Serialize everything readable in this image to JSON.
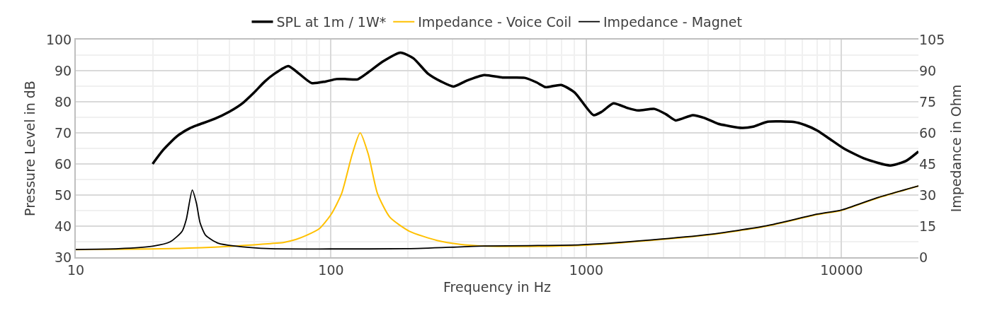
{
  "chart_data": {
    "type": "line",
    "xlabel": "Frequency in Hz",
    "ylabel": "Pressure Level in dB",
    "y2label": "Impedance in Ohm",
    "log": "x",
    "grid": true,
    "legend": "top",
    "line_style": "solid",
    "marker": "none",
    "xlim": [
      10,
      20000
    ],
    "xticks": [
      10,
      100,
      1000,
      10000
    ],
    "ylim": [
      30,
      100
    ],
    "yticks": [
      30,
      40,
      50,
      60,
      70,
      80,
      90,
      100
    ],
    "y2lim": [
      0,
      105
    ],
    "y2ticks": [
      0,
      15,
      30,
      45,
      60,
      75,
      90,
      105
    ],
    "series": [
      {
        "name": "SPL at 1m / 1W*",
        "color": "#000000",
        "x": [
          20,
          22,
          25,
          28,
          30,
          35,
          40,
          45,
          50,
          55,
          60,
          68,
          75,
          84,
          95,
          105,
          115,
          127,
          140,
          160,
          187,
          210,
          240,
          270,
          302,
          340,
          398,
          470,
          573,
          640,
          692,
          797,
          900,
          1067,
          1150,
          1276,
          1450,
          1596,
          1849,
          2050,
          2240,
          2612,
          2900,
          3290,
          4075,
          4500,
          5130,
          6480,
          7200,
          8050,
          9000,
          10190,
          12400,
          15500,
          17900,
          20000
        ],
        "values": [
          60,
          64.5,
          69,
          71.5,
          72.5,
          74.5,
          76.8,
          79.5,
          83,
          86.5,
          89,
          91.5,
          89,
          86,
          86.5,
          87.3,
          87.3,
          87.2,
          89.5,
          93,
          95.8,
          94,
          89,
          86.5,
          84.9,
          86.8,
          88.6,
          87.8,
          87.7,
          86.2,
          84.7,
          85.4,
          83,
          75.7,
          76.8,
          79.5,
          78,
          77.2,
          77.7,
          76,
          74,
          75.7,
          74.8,
          72.9,
          71.6,
          72,
          73.6,
          73.5,
          72.5,
          70.7,
          68,
          65,
          61.6,
          59.5,
          61,
          64
        ]
      },
      {
        "name": "Impedance - Voice Coil",
        "color": "#ffc000",
        "axis": "y2",
        "x": [
          10,
          20,
          28,
          35,
          42,
          50,
          58,
          65,
          73,
          80,
          90,
          100,
          110,
          121,
          130,
          140,
          152,
          170,
          203,
          260,
          320,
          398,
          600,
          951,
          1780,
          3040,
          5050,
          8050,
          10000,
          13700,
          20000
        ],
        "values": [
          3.7,
          4,
          4.4,
          4.9,
          5.4,
          6,
          6.6,
          7.1,
          8.6,
          10.5,
          13.8,
          20.6,
          30.7,
          49.6,
          60,
          49.6,
          30.7,
          19.3,
          12.5,
          8.1,
          6.2,
          5.4,
          5.2,
          5.7,
          8.1,
          10.8,
          14.9,
          20.6,
          22.6,
          28.4,
          34.4
        ]
      },
      {
        "name": "Impedance - Magnet",
        "color": "#000000",
        "axis": "y2",
        "x": [
          10,
          14.7,
          20.2,
          23.4,
          26.1,
          27.1,
          28.6,
          29.7,
          30.7,
          32.3,
          36.1,
          42,
          58,
          100,
          200,
          322,
          398,
          600,
          951,
          1780,
          3040,
          5050,
          8050,
          10000,
          13700,
          20000
        ],
        "values": [
          3.7,
          4.1,
          5.4,
          7.4,
          12.5,
          18.2,
          32.4,
          26,
          16.5,
          10.5,
          6.8,
          5.4,
          4.1,
          4,
          4.1,
          5,
          5.4,
          5.6,
          6,
          8.3,
          11,
          15.1,
          20.8,
          22.8,
          28.6,
          34.4
        ]
      }
    ]
  }
}
